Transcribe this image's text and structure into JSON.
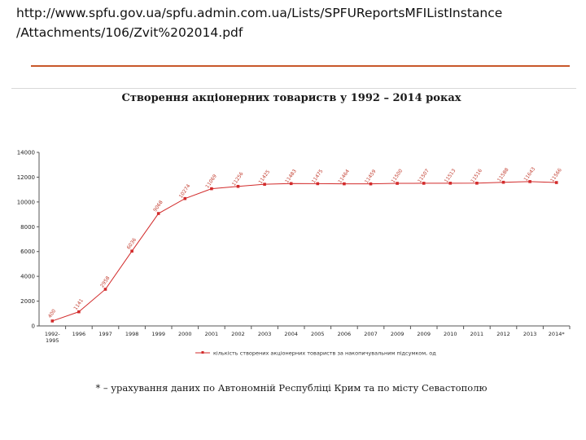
{
  "header": {
    "url_line1": "http://www.spfu.gov.ua/spfu.admin.com.ua/Lists/SPFUReportsMFIListInstance",
    "url_line2": "/Attachments/106/Zvit%202014.pdf"
  },
  "colors": {
    "rule": "#c8582a",
    "series": "#d22b2b"
  },
  "chart_data": {
    "type": "line",
    "title": "Створення акціонерних товариств у 1992 – 2014 роках",
    "categories": [
      "1992-\n1995",
      "1996",
      "1997",
      "1998",
      "1999",
      "2000",
      "2001",
      "2002",
      "2003",
      "2004",
      "2005",
      "2006",
      "2007",
      "2009",
      "2009",
      "2010",
      "2011",
      "2012",
      "2013",
      "2014*"
    ],
    "series": [
      {
        "name": "кількість створених акціонерних товариств за накопичувальним підсумком, од",
        "values": [
          400,
          1141,
          2958,
          6036,
          9068,
          10274,
          11069,
          11256,
          11425,
          11483,
          11475,
          11464,
          11459,
          11500,
          11507,
          11513,
          11516,
          11588,
          11643,
          11566
        ],
        "labels": [
          "400",
          "1141",
          "2958",
          "6036",
          "9068",
          "10274",
          "11069",
          "11256",
          "11425",
          "11483",
          "11475",
          "11464",
          "11459",
          "11500",
          "11507",
          "11513",
          "11516",
          "11588",
          "11643",
          "11566"
        ]
      }
    ],
    "ylim": [
      0,
      14000
    ],
    "yticks": [
      0,
      2000,
      4000,
      6000,
      8000,
      10000,
      12000,
      14000
    ],
    "grid": false,
    "legend_position": "bottom"
  },
  "footnote": "* – урахування даних по Автономній Республіці Крим та по місту Севастополю"
}
